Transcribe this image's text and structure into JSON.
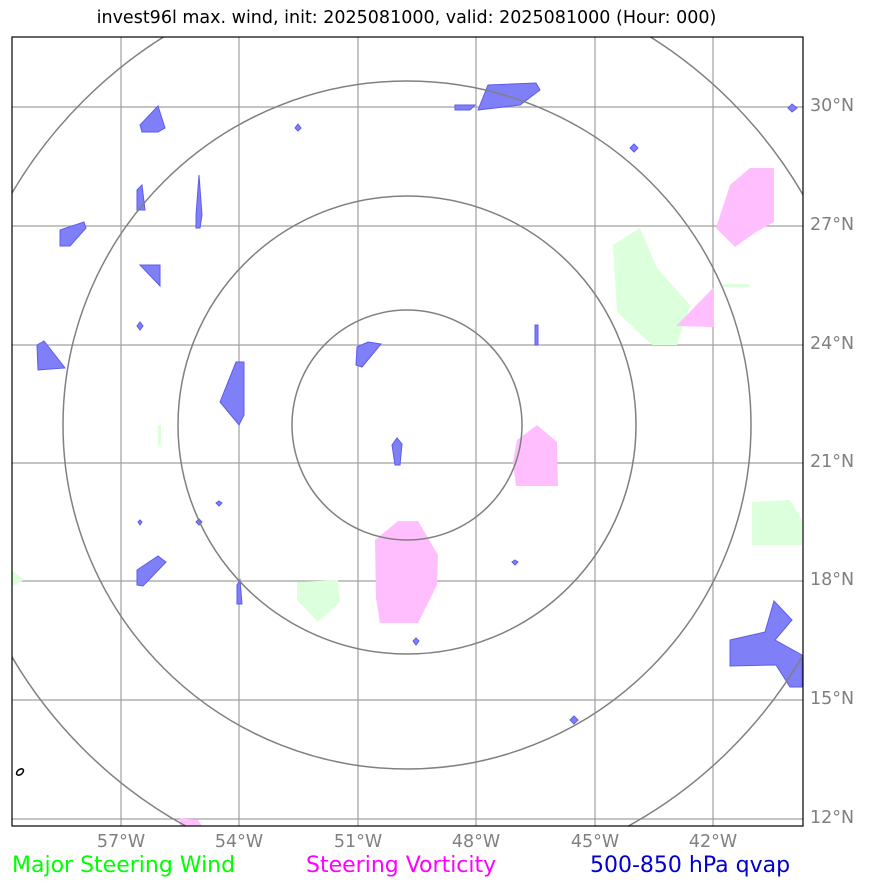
{
  "title": "invest96l max. wind, init: 2025081000, valid: 2025081000 (Hour: 000)",
  "lat_labels": [
    "30°N",
    "27°N",
    "24°N",
    "21°N",
    "18°N",
    "15°N",
    "12°N"
  ],
  "lon_labels": [
    "57°W",
    "54°W",
    "51°W",
    "48°W",
    "45°W",
    "42°W"
  ],
  "legend": {
    "wind": "Major Steering Wind",
    "vorticity": "Steering Vorticity",
    "qvap": "500-850 hPa qvap"
  },
  "colors": {
    "wind": "#00ff00",
    "wind_fill": "#dcffdc",
    "vorticity": "#ff00ff",
    "vorticity_fill": "#ffbfff",
    "qvap": "#0000cc",
    "qvap_fill": "#7f7ff7",
    "grid": "#a0a0a0",
    "range_rings": "#808080"
  }
}
